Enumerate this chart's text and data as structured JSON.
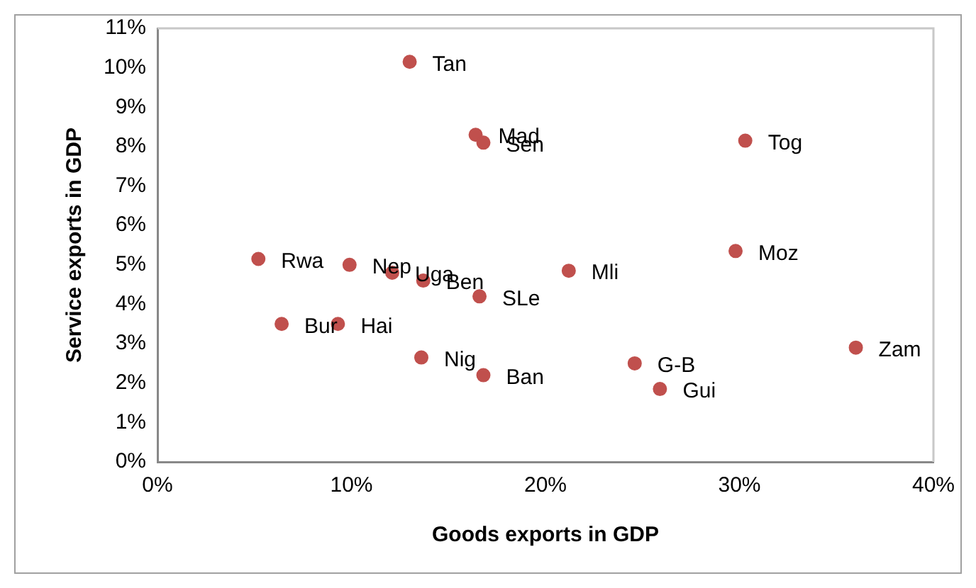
{
  "chart_data": {
    "type": "scatter",
    "xlabel": "Goods exports in GDP",
    "ylabel": "Service exports in GDP",
    "x": [
      13.0,
      16.4,
      16.8,
      5.2,
      9.9,
      12.1,
      13.7,
      16.6,
      21.2,
      6.4,
      9.3,
      13.6,
      16.8,
      30.3,
      29.8,
      36.0,
      24.6,
      25.9
    ],
    "series": [
      {
        "color": "#c0504d",
        "values": [
          10.15,
          8.3,
          8.1,
          5.15,
          5.0,
          4.8,
          4.6,
          4.2,
          4.85,
          3.5,
          3.5,
          2.65,
          2.2,
          8.15,
          5.35,
          2.9,
          2.5,
          1.85
        ]
      }
    ],
    "xlim": [
      0,
      40
    ],
    "xticks": [
      {
        "value": 0,
        "label": "0%"
      },
      {
        "value": 10,
        "label": "10%"
      },
      {
        "value": 20,
        "label": "20%"
      },
      {
        "value": 30,
        "label": "30%"
      },
      {
        "value": 40,
        "label": "40%"
      }
    ],
    "ylim": [
      0,
      11
    ],
    "yticks": [
      {
        "value": 0,
        "label": "0%"
      },
      {
        "value": 1,
        "label": "1%"
      },
      {
        "value": 2,
        "label": "2%"
      },
      {
        "value": 3,
        "label": "3%"
      },
      {
        "value": 4,
        "label": "4%"
      },
      {
        "value": 5,
        "label": "5%"
      },
      {
        "value": 6,
        "label": "6%"
      },
      {
        "value": 7,
        "label": "7%"
      },
      {
        "value": 8,
        "label": "8%"
      },
      {
        "value": 9,
        "label": "9%"
      },
      {
        "value": 10,
        "label": "10%"
      },
      {
        "value": 11,
        "label": "11%"
      }
    ],
    "grid": false,
    "legend": false,
    "marker": "circle",
    "annotations": [
      {
        "text": "Tan",
        "x": 13.0,
        "y": 10.15
      },
      {
        "text": "Mad",
        "x": 16.4,
        "y": 8.3
      },
      {
        "text": "Sen",
        "x": 16.8,
        "y": 8.1
      },
      {
        "text": "Rwa",
        "x": 5.2,
        "y": 5.15
      },
      {
        "text": "Nep",
        "x": 9.9,
        "y": 5.0
      },
      {
        "text": "Uga",
        "x": 12.1,
        "y": 4.8
      },
      {
        "text": "Ben",
        "x": 13.7,
        "y": 4.6
      },
      {
        "text": "SLe",
        "x": 16.6,
        "y": 4.2
      },
      {
        "text": "Mli",
        "x": 21.2,
        "y": 4.85
      },
      {
        "text": "Bur",
        "x": 6.4,
        "y": 3.5
      },
      {
        "text": "Hai",
        "x": 9.3,
        "y": 3.5
      },
      {
        "text": "Nig",
        "x": 13.6,
        "y": 2.65
      },
      {
        "text": "Ban",
        "x": 16.8,
        "y": 2.2
      },
      {
        "text": "Tog",
        "x": 30.3,
        "y": 8.15
      },
      {
        "text": "Moz",
        "x": 29.8,
        "y": 5.35
      },
      {
        "text": "Zam",
        "x": 36.0,
        "y": 2.9
      },
      {
        "text": "G-B",
        "x": 24.6,
        "y": 2.5
      },
      {
        "text": "Gui",
        "x": 25.9,
        "y": 1.85
      }
    ]
  }
}
